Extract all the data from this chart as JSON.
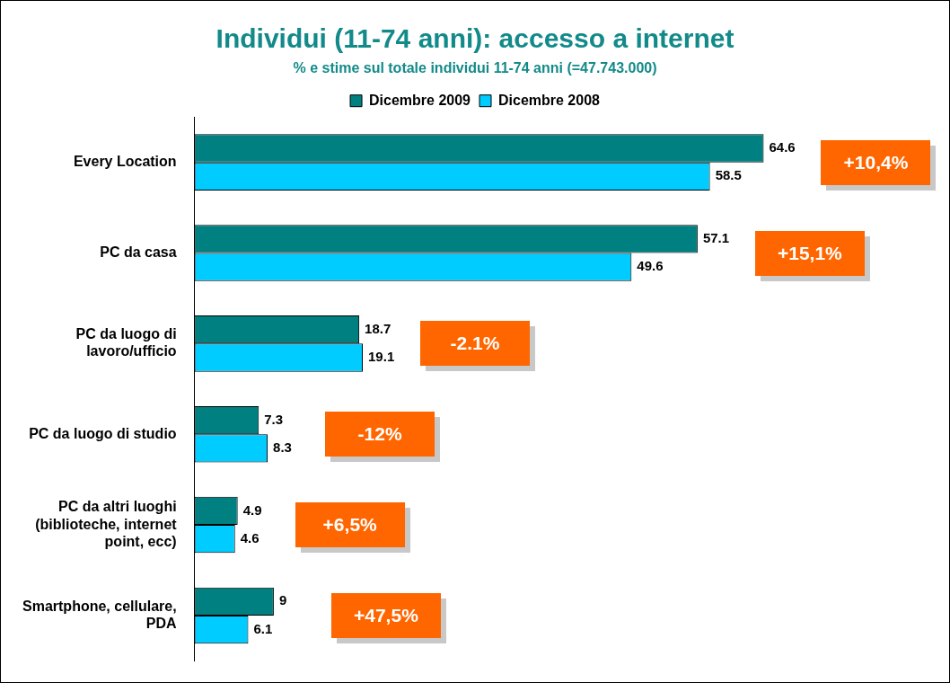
{
  "chart_data": {
    "type": "bar",
    "orientation": "horizontal",
    "title": "Individui (11-74 anni): accesso a internet",
    "subtitle": "% e stime sul totale individui 11-74 anni (=47.743.000)",
    "categories": [
      "Every Location",
      "PC da casa",
      "PC da luogo di lavoro/ufficio",
      "PC da luogo di studio",
      "PC da altri luoghi (biblioteche, internet point, ecc)",
      "Smartphone, cellulare, PDA"
    ],
    "series": [
      {
        "name": "Dicembre 2009",
        "color": "#008080",
        "values": [
          64.6,
          57.1,
          18.7,
          7.3,
          4.9,
          9
        ]
      },
      {
        "name": "Dicembre 2008",
        "color": "#00ccff",
        "values": [
          58.5,
          49.6,
          19.1,
          8.3,
          4.6,
          6.1
        ]
      }
    ],
    "data_labels": true,
    "legend": "top",
    "annotations": [
      "+10,4%",
      "+15,1%",
      "-2.1%",
      "-12%",
      "+6,5%",
      "+47,5%"
    ]
  }
}
